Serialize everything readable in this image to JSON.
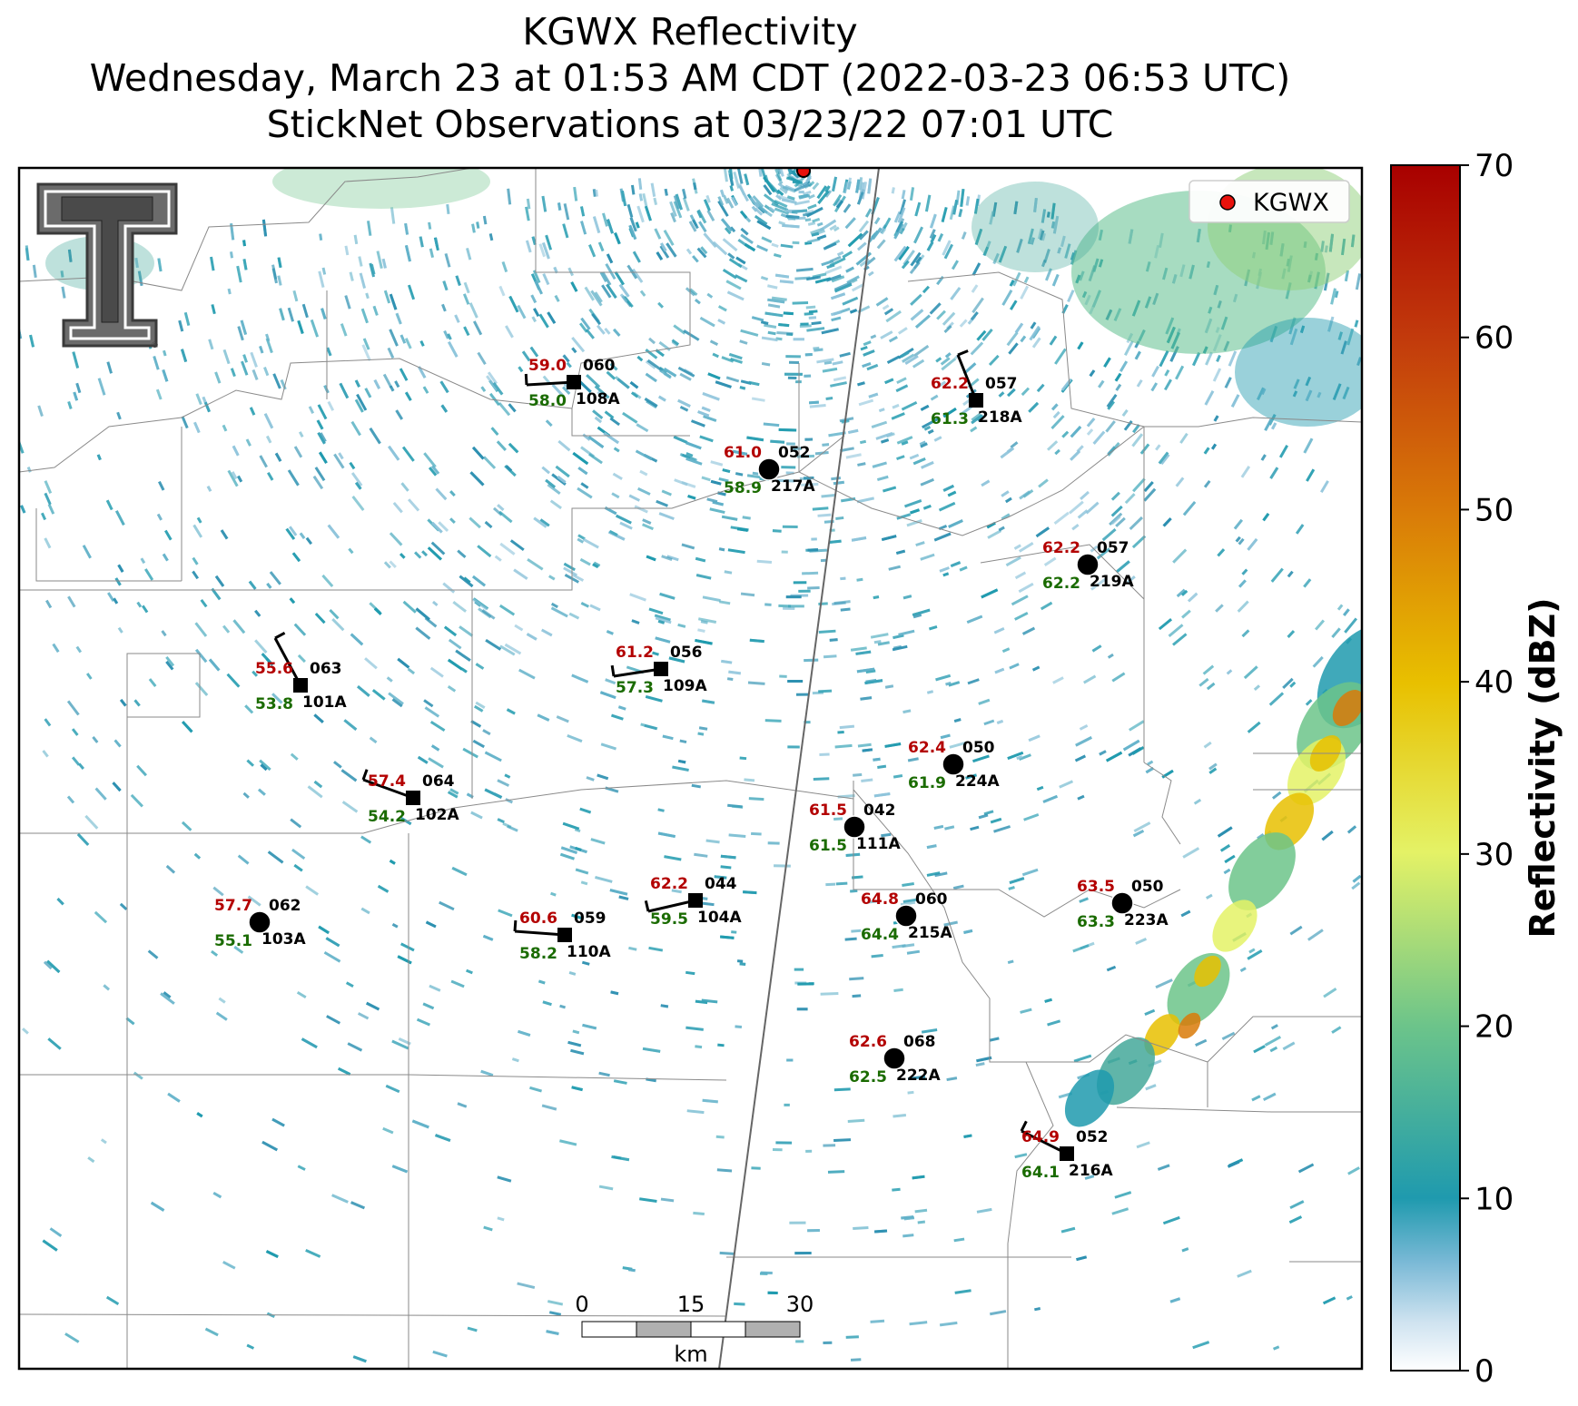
{
  "title": {
    "line1": "KGWX Reflectivity",
    "line2": "Wednesday, March 23 at 01:53 AM CDT (2022-03-23 06:53 UTC)",
    "line3": "StickNet Observations at 03/23/22 07:01 UTC"
  },
  "legend": {
    "label": "KGWX",
    "marker_color": "#e8120c"
  },
  "radar_site": "KGWX",
  "colors": {
    "temperature": "#b30000",
    "dewpoint": "#1a6b00",
    "station_text": "#000000",
    "reflectivity_low": "#ffffff",
    "reflectivity_mid": "#1f9aae",
    "reflectivity_high": "#a80000"
  },
  "colorbar": {
    "label": "Reflectivity (dBZ)",
    "min": 0,
    "max": 70,
    "ticks": [
      "0",
      "10",
      "20",
      "30",
      "40",
      "50",
      "60",
      "70"
    ]
  },
  "scalebar": {
    "unit": "km",
    "ticks": [
      "0",
      "15",
      "30"
    ]
  },
  "logo": {
    "name": "texas-tech-double-t-logo",
    "letter": "T"
  },
  "stations": [
    {
      "id": "108A",
      "temp": "59.0",
      "dewpoint": "58.0",
      "pressure": "060",
      "marker": "square"
    },
    {
      "id": "218A",
      "temp": "62.2",
      "dewpoint": "61.3",
      "pressure": "057",
      "marker": "square"
    },
    {
      "id": "217A",
      "temp": "61.0",
      "dewpoint": "58.9",
      "pressure": "052",
      "marker": "circle"
    },
    {
      "id": "219A",
      "temp": "62.2",
      "dewpoint": "62.2",
      "pressure": "057",
      "marker": "circle"
    },
    {
      "id": "101A",
      "temp": "55.6",
      "dewpoint": "53.8",
      "pressure": "063",
      "marker": "square"
    },
    {
      "id": "109A",
      "temp": "61.2",
      "dewpoint": "57.3",
      "pressure": "056",
      "marker": "square"
    },
    {
      "id": "224A",
      "temp": "62.4",
      "dewpoint": "61.9",
      "pressure": "050",
      "marker": "circle"
    },
    {
      "id": "102A",
      "temp": "57.4",
      "dewpoint": "54.2",
      "pressure": "064",
      "marker": "square"
    },
    {
      "id": "111A",
      "temp": "61.5",
      "dewpoint": "61.5",
      "pressure": "042",
      "marker": "circle"
    },
    {
      "id": "103A",
      "temp": "57.7",
      "dewpoint": "55.1",
      "pressure": "062",
      "marker": "circle"
    },
    {
      "id": "104A",
      "temp": "62.2",
      "dewpoint": "59.5",
      "pressure": "044",
      "marker": "square"
    },
    {
      "id": "110A",
      "temp": "60.6",
      "dewpoint": "58.2",
      "pressure": "059",
      "marker": "square"
    },
    {
      "id": "215A",
      "temp": "64.8",
      "dewpoint": "64.4",
      "pressure": "060",
      "marker": "circle"
    },
    {
      "id": "223A",
      "temp": "63.5",
      "dewpoint": "63.3",
      "pressure": "050",
      "marker": "circle"
    },
    {
      "id": "222A",
      "temp": "62.6",
      "dewpoint": "62.5",
      "pressure": "068",
      "marker": "circle"
    },
    {
      "id": "216A",
      "temp": "64.9",
      "dewpoint": "64.1",
      "pressure": "052",
      "marker": "square"
    }
  ]
}
